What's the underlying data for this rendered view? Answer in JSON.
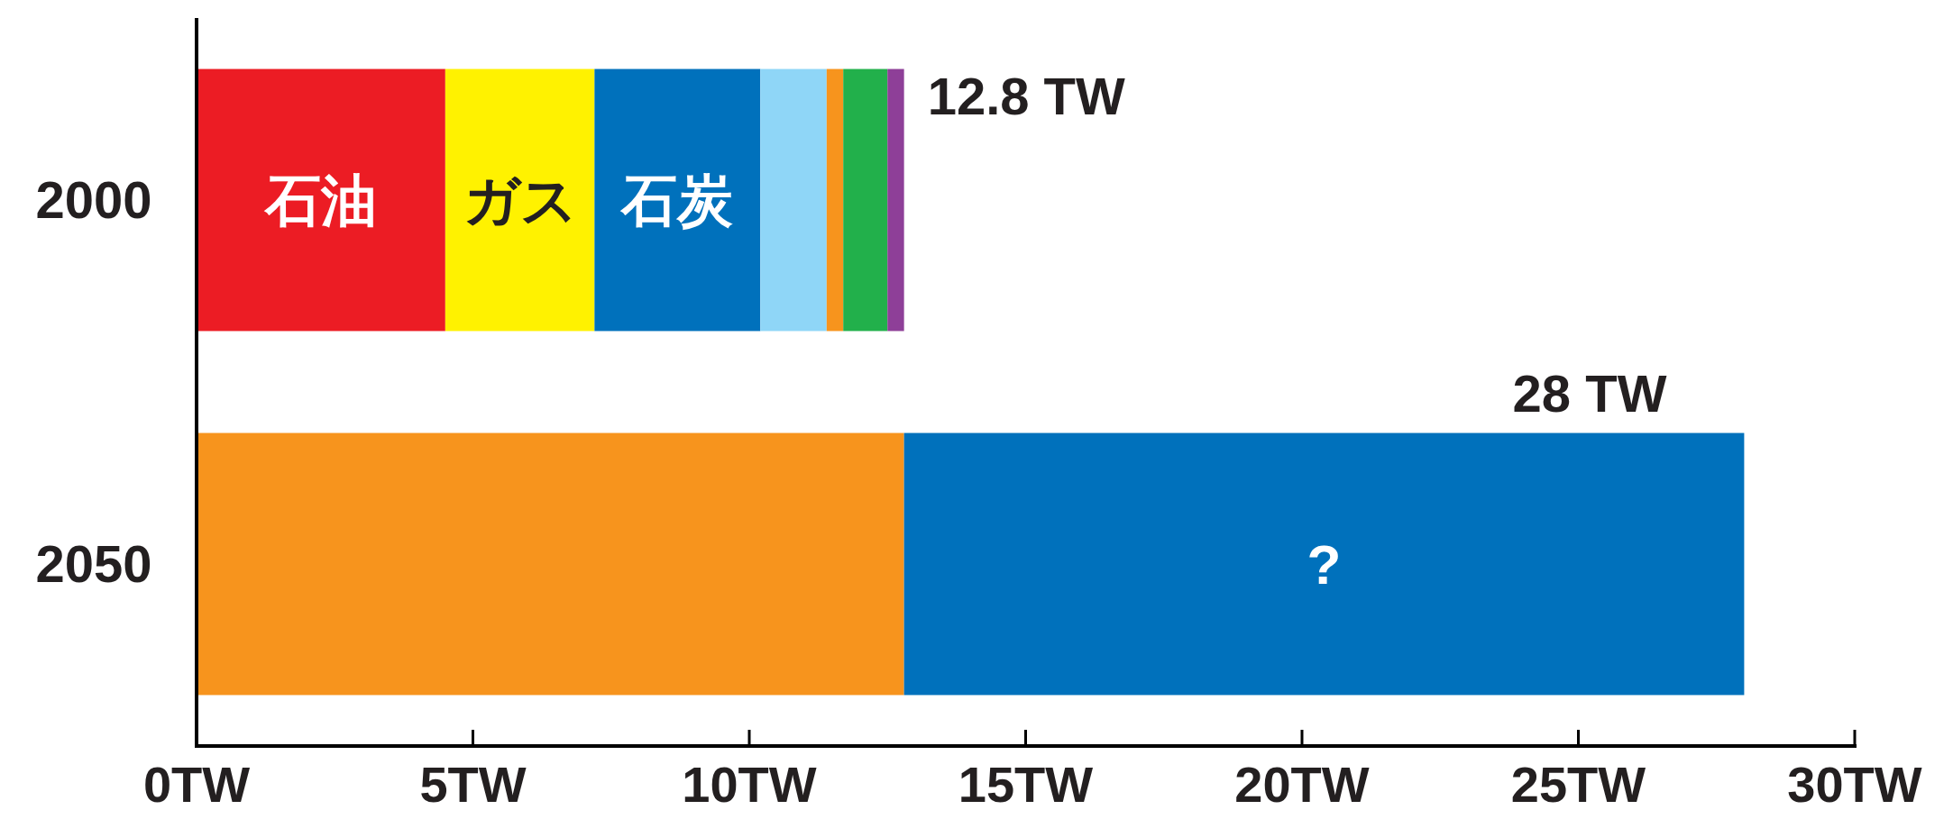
{
  "chart_data": {
    "type": "bar",
    "orientation": "horizontal",
    "stacked": true,
    "categories": [
      "2000",
      "2050"
    ],
    "series": [
      {
        "name": "石油",
        "color": "#ec1c24",
        "values": [
          4.5,
          null
        ]
      },
      {
        "name": "ガス",
        "color": "#fff200",
        "values": [
          2.7,
          null
        ]
      },
      {
        "name": "石炭",
        "color": "#0071bc",
        "values": [
          3.0,
          null
        ]
      },
      {
        "color": "#8fd6f7",
        "values": [
          1.2,
          null
        ]
      },
      {
        "color": "#f7941d",
        "values": [
          0.3,
          null
        ]
      },
      {
        "color": "#22b04b",
        "values": [
          0.8,
          null
        ]
      },
      {
        "color": "#8e3f98",
        "values": [
          0.3,
          null
        ]
      },
      {
        "color": "#f7941d",
        "values": [
          null,
          12.8
        ]
      },
      {
        "name": "?",
        "color": "#0071bc",
        "values": [
          null,
          15.2
        ]
      }
    ],
    "totals": [
      "12.8 TW",
      "28 TW"
    ],
    "xlim": [
      0,
      30
    ],
    "xticks": [
      {
        "value": 0,
        "label": "0TW"
      },
      {
        "value": 5,
        "label": "5TW"
      },
      {
        "value": 10,
        "label": "10TW"
      },
      {
        "value": 15,
        "label": "15TW"
      },
      {
        "value": 20,
        "label": "20TW"
      },
      {
        "value": 25,
        "label": "25TW"
      },
      {
        "value": 30,
        "label": "30TW"
      }
    ]
  }
}
